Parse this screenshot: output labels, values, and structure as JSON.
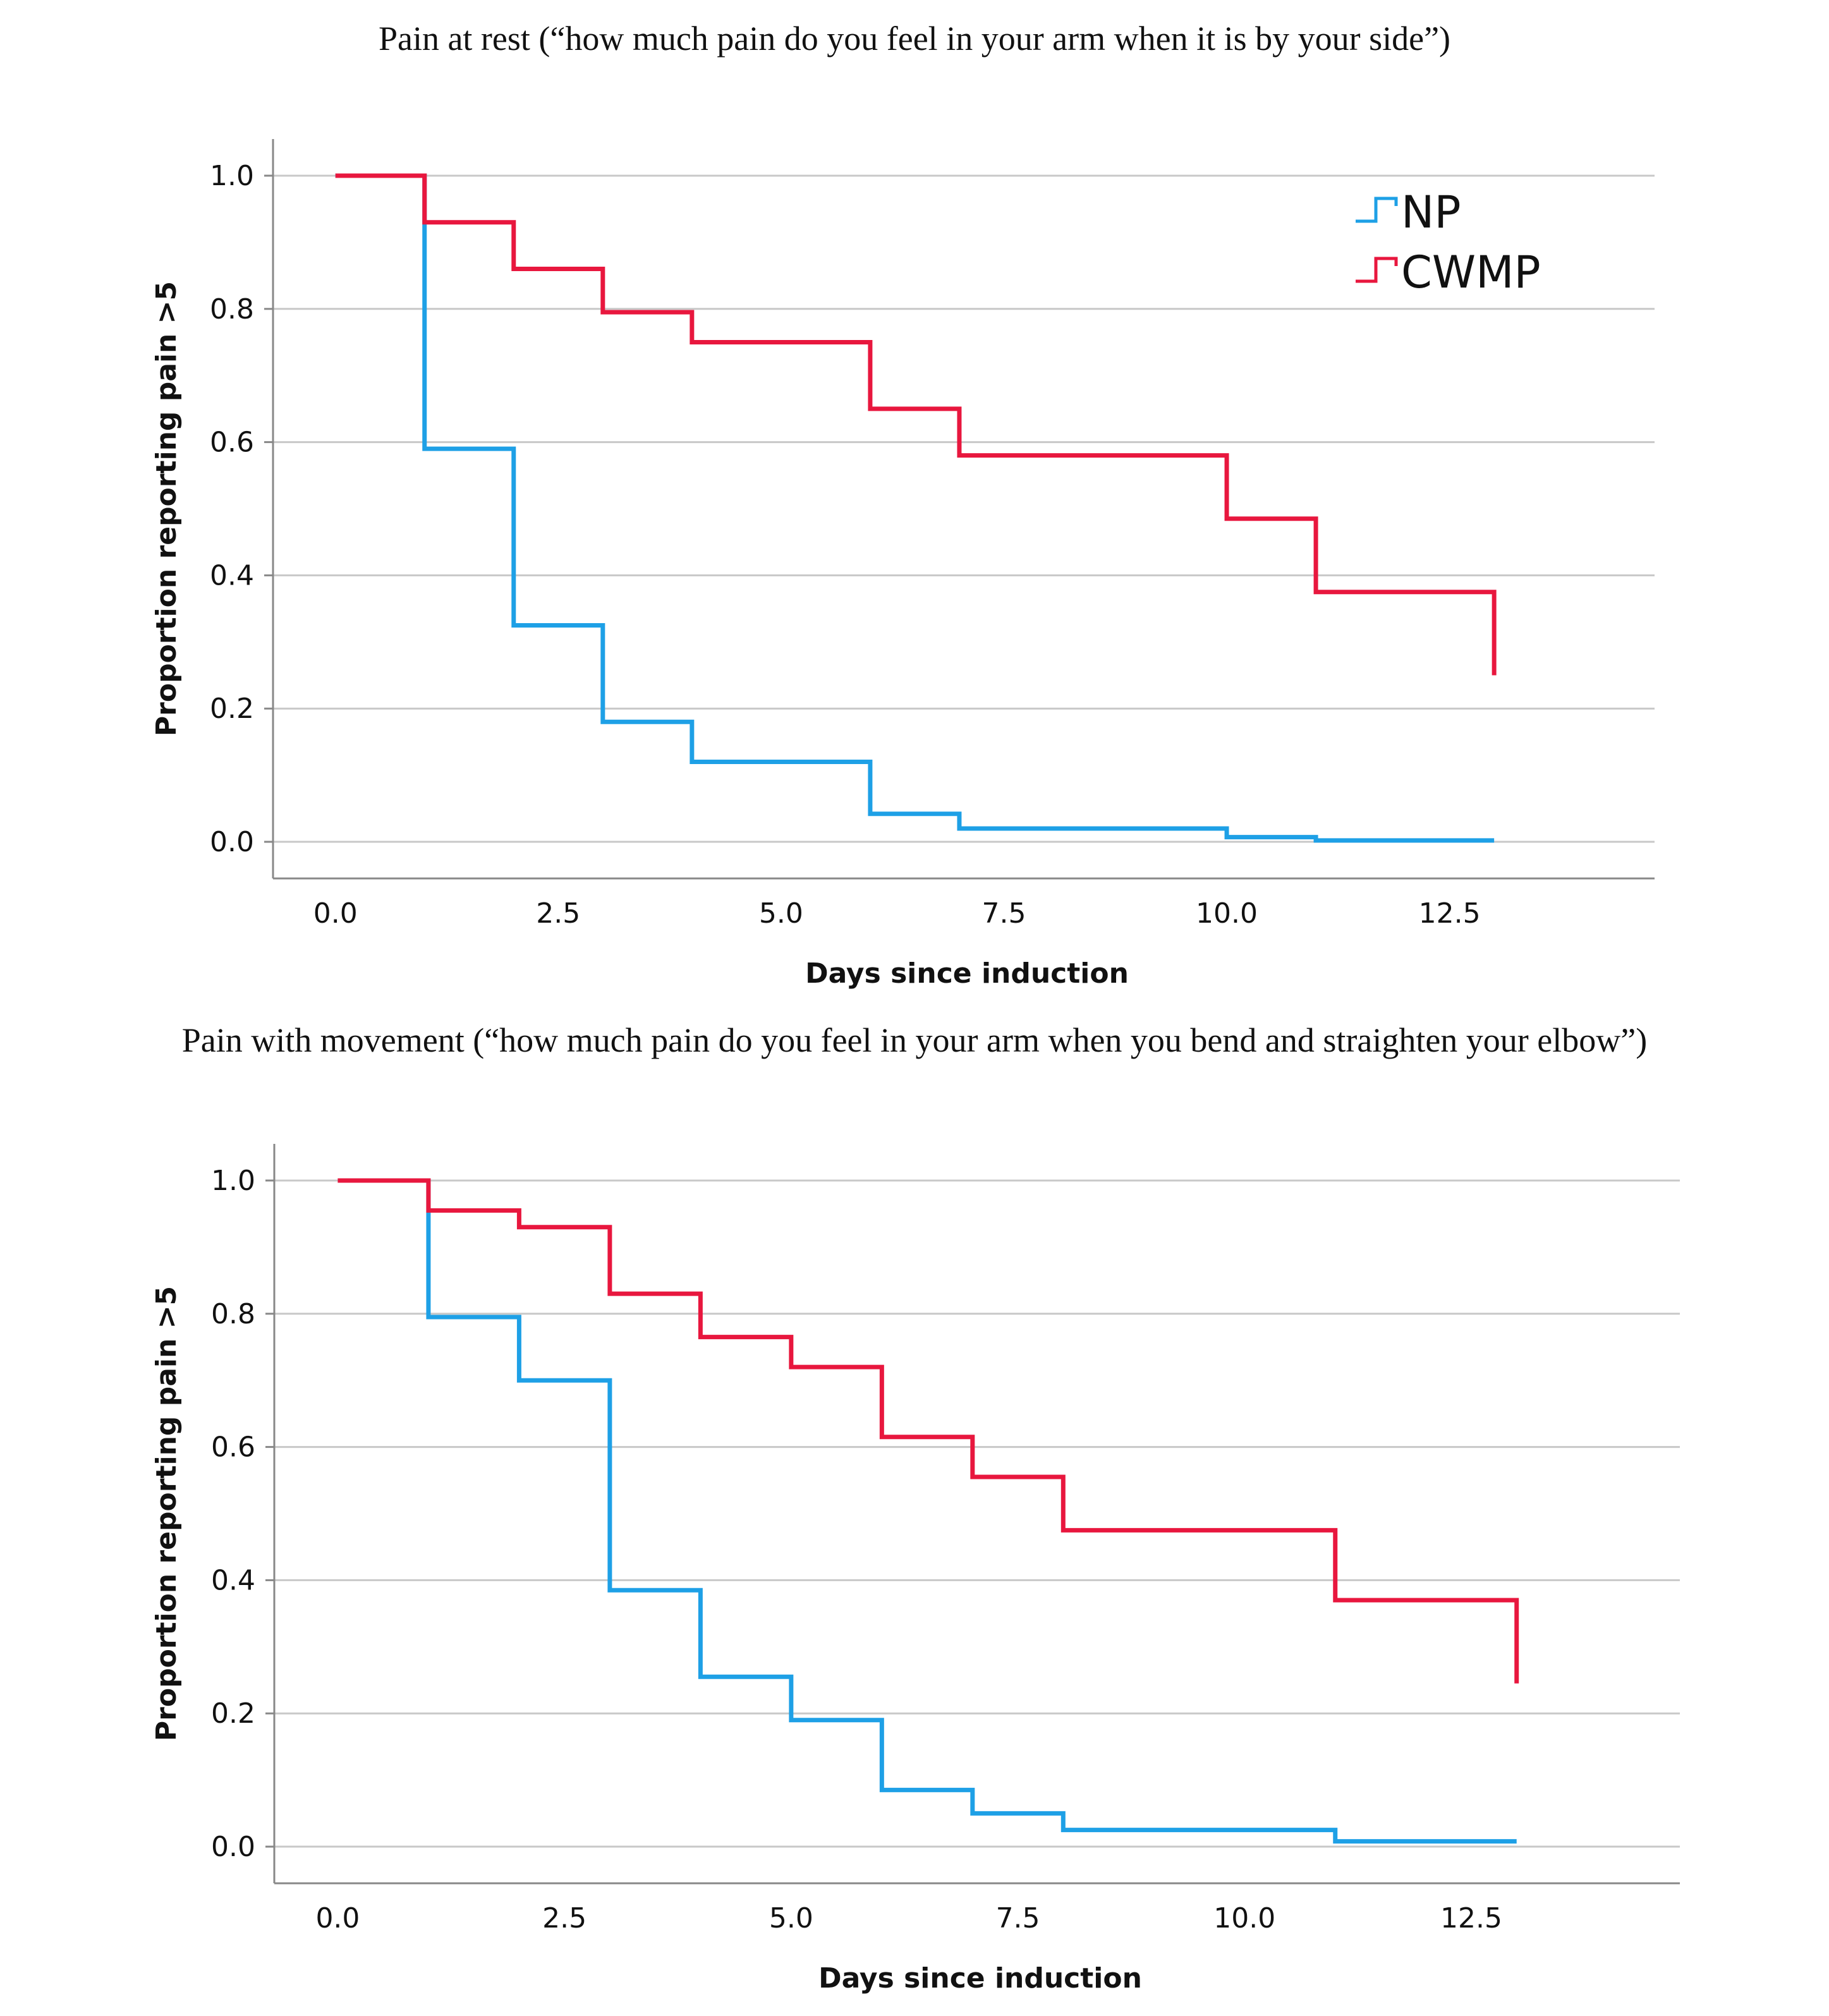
{
  "chart_data": [
    {
      "type": "line",
      "step": true,
      "title": "Pain at rest (“how much pain do you feel in your arm when it is by your side”)",
      "xlabel": "Days since induction",
      "ylabel": "Proportion reporting pain >5",
      "xlim": [
        -0.7,
        14.8
      ],
      "ylim": [
        -0.055,
        1.055
      ],
      "xticks": [
        0.0,
        2.5,
        5.0,
        7.5,
        10.0,
        12.5
      ],
      "xtick_labels": [
        "0.0",
        "2.5",
        "5.0",
        "7.5",
        "10.0",
        "12.5"
      ],
      "yticks": [
        0.0,
        0.2,
        0.4,
        0.6,
        0.8,
        1.0
      ],
      "ytick_labels": [
        "0.0",
        "0.2",
        "0.4",
        "0.6",
        "0.8",
        "1.0"
      ],
      "grid": "horizontal",
      "legend": "top-right",
      "series": [
        {
          "name": "NP",
          "color": "#1ea0e6",
          "x": [
            0,
            1,
            2,
            3,
            4,
            6,
            7,
            10,
            11,
            13
          ],
          "y": [
            1.0,
            0.59,
            0.325,
            0.18,
            0.12,
            0.042,
            0.02,
            0.007,
            0.002,
            0.002
          ]
        },
        {
          "name": "CWMP",
          "color": "#e8173e",
          "x": [
            0,
            1,
            2,
            3,
            4,
            6,
            7,
            10,
            11,
            13
          ],
          "y": [
            1.0,
            0.93,
            0.86,
            0.795,
            0.75,
            0.65,
            0.58,
            0.485,
            0.375,
            0.25
          ]
        }
      ]
    },
    {
      "type": "line",
      "step": true,
      "title": "Pain with movement (“how much pain do you feel in your arm when you bend and straighten your elbow”)",
      "xlabel": "Days since induction",
      "ylabel": "Proportion reporting pain >5",
      "xlim": [
        -0.7,
        14.8
      ],
      "ylim": [
        -0.055,
        1.055
      ],
      "xticks": [
        0.0,
        2.5,
        5.0,
        7.5,
        10.0,
        12.5
      ],
      "xtick_labels": [
        "0.0",
        "2.5",
        "5.0",
        "7.5",
        "10.0",
        "12.5"
      ],
      "yticks": [
        0.0,
        0.2,
        0.4,
        0.6,
        0.8,
        1.0
      ],
      "ytick_labels": [
        "0.0",
        "0.2",
        "0.4",
        "0.6",
        "0.8",
        "1.0"
      ],
      "grid": "horizontal",
      "series": [
        {
          "name": "NP",
          "color": "#1ea0e6",
          "x": [
            0,
            1,
            2,
            3,
            4,
            5,
            6,
            7,
            8,
            11,
            13
          ],
          "y": [
            1.0,
            0.795,
            0.7,
            0.385,
            0.255,
            0.19,
            0.085,
            0.05,
            0.025,
            0.008,
            0.008
          ]
        },
        {
          "name": "CWMP",
          "color": "#e8173e",
          "x": [
            0,
            1,
            2,
            3,
            4,
            5,
            6,
            7,
            8,
            11,
            13
          ],
          "y": [
            1.0,
            0.955,
            0.93,
            0.83,
            0.765,
            0.72,
            0.615,
            0.555,
            0.475,
            0.37,
            0.245
          ]
        }
      ]
    }
  ]
}
